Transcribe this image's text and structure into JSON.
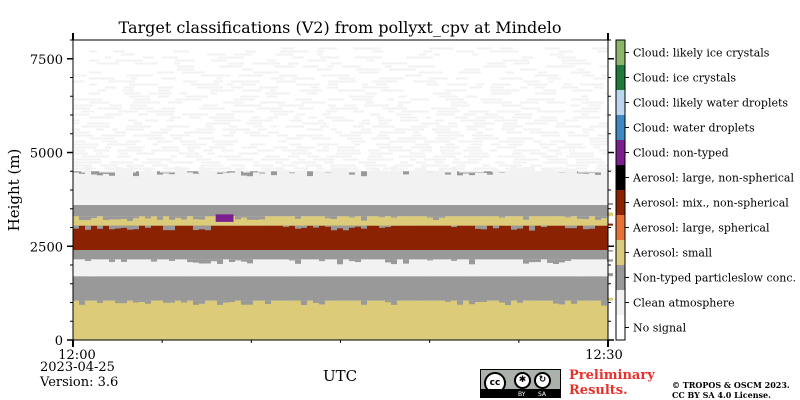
{
  "chart_data": {
    "type": "heatmap",
    "title": "Target classifications (V2) from pollyxt_cpv at Mindelo",
    "xlabel": "UTC",
    "ylabel": "Height (m)",
    "x_ticks": [
      "12:00",
      "12:30"
    ],
    "xlim": [
      "12:00",
      "12:30"
    ],
    "y_ticks": [
      0,
      2500,
      5000,
      7500
    ],
    "ylim": [
      0,
      8000
    ],
    "legend_position": "right colorbar",
    "classes": [
      {
        "label": "No signal",
        "color": "#ffffff"
      },
      {
        "label": "Clean atmosphere",
        "color": "#f2f2f2"
      },
      {
        "label": "Non-typed particleslow conc.",
        "color": "#999999"
      },
      {
        "label": "Aerosol: small",
        "color": "#dccb78"
      },
      {
        "label": "Aerosol: large, spherical",
        "color": "#e8733a"
      },
      {
        "label": "Aerosol: mix., non-spherical",
        "color": "#8b2303"
      },
      {
        "label": "Aerosol: large, non-spherical",
        "color": "#000000"
      },
      {
        "label": "Cloud: non-typed",
        "color": "#7b1f8e"
      },
      {
        "label": "Cloud: water droplets",
        "color": "#3e88c4"
      },
      {
        "label": "Cloud: likely water droplets",
        "color": "#bcd6f0"
      },
      {
        "label": "Cloud: ice crystals",
        "color": "#1e7a3a"
      },
      {
        "label": "Cloud: likely ice crystals",
        "color": "#8ab56a"
      }
    ],
    "layers": [
      {
        "class": "Aerosol: small",
        "from_m": 0,
        "to_m": 1050
      },
      {
        "class": "Non-typed particleslow conc.",
        "from_m": 1050,
        "to_m": 1700
      },
      {
        "class": "Clean atmosphere",
        "from_m": 1700,
        "to_m": 2150
      },
      {
        "class": "Non-typed particleslow conc.",
        "from_m": 2150,
        "to_m": 2400
      },
      {
        "class": "Aerosol: mix., non-spherical",
        "from_m": 2400,
        "to_m": 3050
      },
      {
        "class": "Aerosol: small",
        "from_m": 3050,
        "to_m": 3300
      },
      {
        "class": "Non-typed particleslow conc.",
        "from_m": 3300,
        "to_m": 3600
      },
      {
        "class": "Clean atmosphere",
        "from_m": 3600,
        "to_m": 4500
      },
      {
        "class": "Clean atmosphere",
        "from_m": 4500,
        "to_m": 7800,
        "sparse": true
      }
    ],
    "patches": [
      {
        "class": "Cloud: non-typed",
        "x_start": "12:08",
        "x_end": "12:09",
        "from_m": 3150,
        "to_m": 3350
      }
    ]
  },
  "date_text": "2023-04-25",
  "version_text": "Version: 3.6",
  "license_badge": {
    "cc": "cc",
    "by": "BY",
    "sa": "SA"
  },
  "preliminary_text": [
    "Preliminary",
    "Results."
  ],
  "copyright_text": [
    "© TROPOS & OSCM 2023.",
    "CC BY SA 4.0 License."
  ]
}
